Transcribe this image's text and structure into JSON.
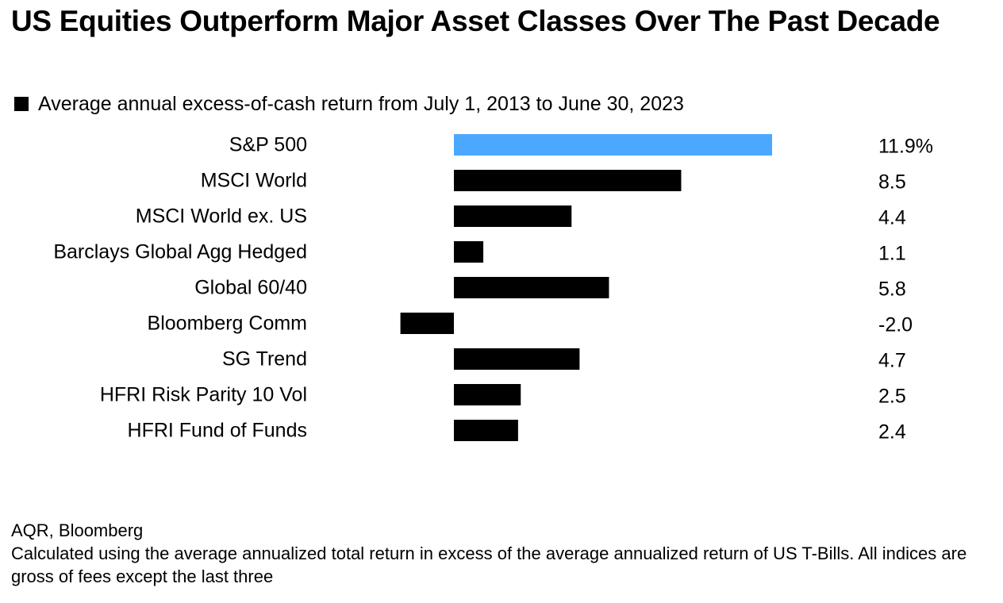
{
  "title": "US Equities Outperform Major Asset Classes Over The Past Decade",
  "legend": {
    "label": "Average annual excess-of-cash return from July 1, 2013 to June 30, 2023"
  },
  "footer": {
    "source": "AQR, Bloomberg",
    "note": "Calculated using the average annualized total return in excess of the average annualized return of US T-Bills. All indices are gross of fees except the last three"
  },
  "colors": {
    "highlight": "#4aa8ff",
    "bar": "#000000"
  },
  "chart_data": {
    "type": "bar",
    "orientation": "horizontal",
    "categories": [
      "S&P 500",
      "MSCI World",
      "MSCI World ex. US",
      "Barclays Global Agg Hedged",
      "Global 60/40",
      "Bloomberg Comm",
      "SG Trend",
      "HFRI Risk Parity 10 Vol",
      "HFRI Fund of Funds"
    ],
    "values": [
      11.9,
      8.5,
      4.4,
      1.1,
      5.8,
      -2.0,
      4.7,
      2.5,
      2.4
    ],
    "value_labels": [
      "11.9%",
      "8.5",
      "4.4",
      "1.1",
      "5.8",
      "-2.0",
      "4.7",
      "2.5",
      "2.4"
    ],
    "highlight_index": 0,
    "series_label": "Average annual excess-of-cash return from July 1, 2013 to June 30, 2023",
    "xlim": [
      -2.0,
      11.9
    ],
    "grid": false,
    "legend_position": "top-left"
  }
}
